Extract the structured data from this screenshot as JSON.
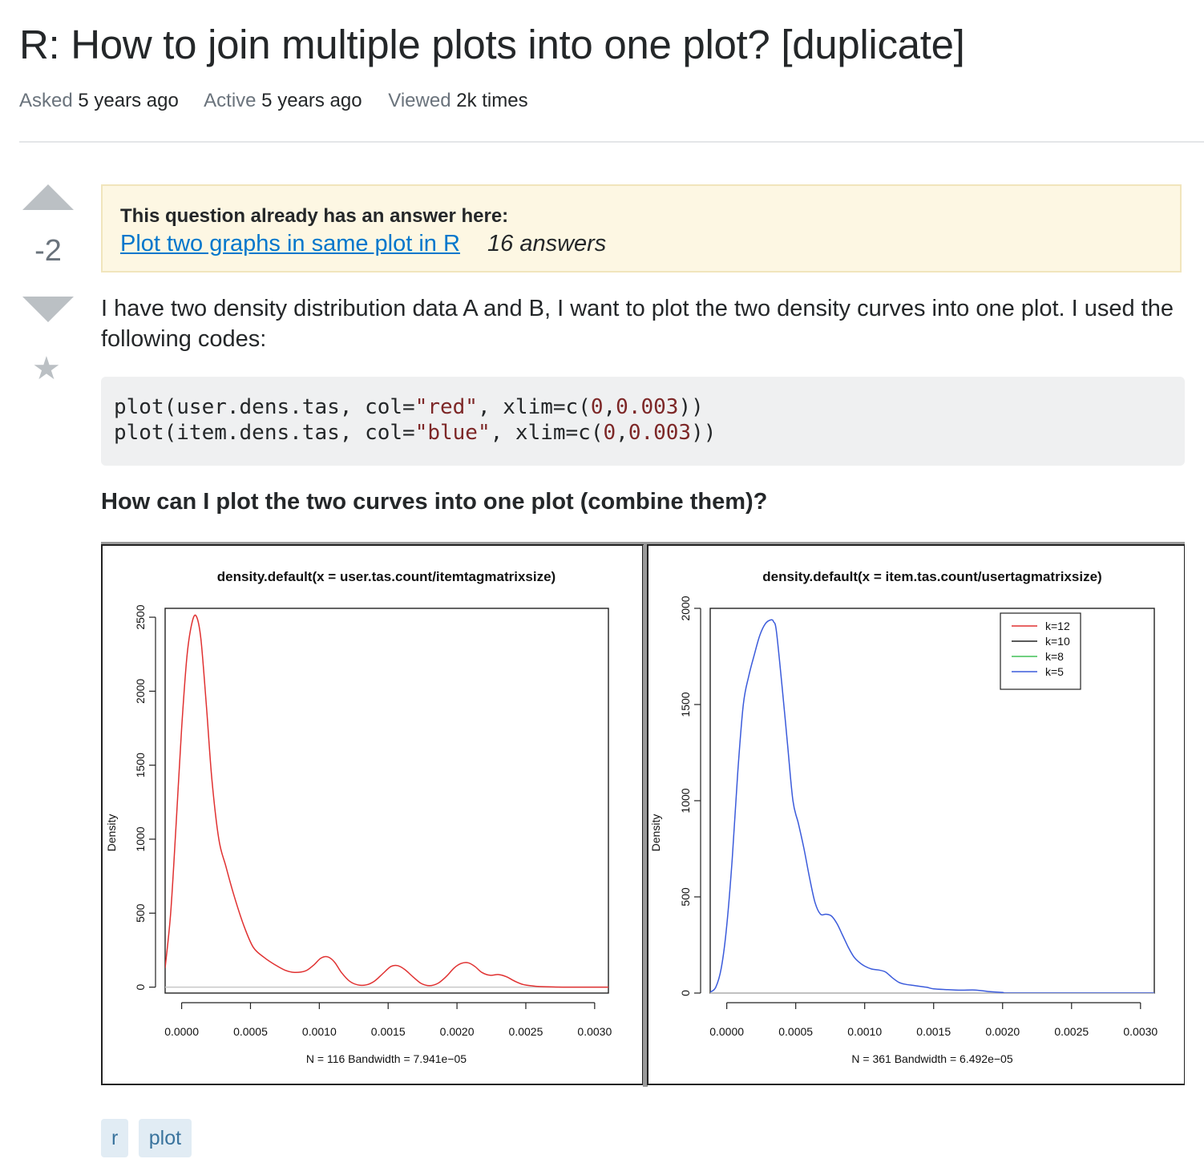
{
  "question": {
    "title": "R: How to join multiple plots into one plot? [duplicate]",
    "meta": [
      {
        "label": "Asked",
        "value": "5 years ago"
      },
      {
        "label": "Active",
        "value": "5 years ago"
      },
      {
        "label": "Viewed",
        "value": "2k times"
      }
    ],
    "vote_count": "-2",
    "duplicate_notice": {
      "heading": "This question already has an answer here:",
      "link_text": "Plot two graphs in same plot in R",
      "answers": "16 answers"
    },
    "body_text": "I have two density distribution data A and B, I want to plot the two density curves into one plot. I used the following codes:",
    "code_lines": [
      "plot(user.dens.tas, col=\"red\", xlim=c(0,0.003))",
      "plot(item.dens.tas, col=\"blue\", xlim=c(0,0.003))"
    ],
    "subheading": "How can I plot the two curves into one plot (combine them)?",
    "tags": [
      "r",
      "plot"
    ]
  },
  "chart_data": [
    {
      "type": "line",
      "title": "density.default(x = user.tas.count/itemtagmatrixsize)",
      "xlabel": "N = 116   Bandwidth = 7.941e−05",
      "ylabel": "Density",
      "xlim": [
        -0.00012,
        0.0031
      ],
      "ylim": [
        -40,
        2560
      ],
      "x_ticks": [
        0,
        0.0005,
        0.001,
        0.0015,
        0.002,
        0.0025,
        0.003
      ],
      "x_tick_labels": [
        "0.0000",
        "0.0005",
        "0.0010",
        "0.0015",
        "0.0020",
        "0.0025",
        "0.0030"
      ],
      "y_ticks": [
        0,
        500,
        1000,
        1500,
        2000,
        2500
      ],
      "y_tick_labels": [
        "0",
        "500",
        "1000",
        "1500",
        "2000",
        "2500"
      ],
      "grid": false,
      "color": "#e03131",
      "x": [
        -0.00012,
        -8e-05,
        -4e-05,
        0.0,
        4e-05,
        8e-05,
        0.00011,
        0.00014,
        0.00018,
        0.00022,
        0.00027,
        0.00032,
        0.00038,
        0.00045,
        0.00052,
        0.0006,
        0.00068,
        0.00075,
        0.00082,
        0.0009,
        0.00096,
        0.00101,
        0.00106,
        0.00111,
        0.00116,
        0.00122,
        0.00128,
        0.00134,
        0.0014,
        0.00146,
        0.00152,
        0.00157,
        0.00162,
        0.00168,
        0.00174,
        0.0018,
        0.00186,
        0.00192,
        0.00198,
        0.00203,
        0.00208,
        0.00213,
        0.00218,
        0.00224,
        0.0023,
        0.00236,
        0.00242,
        0.00248,
        0.00255,
        0.0026,
        0.0027,
        0.0028,
        0.0029,
        0.0031
      ],
      "y": [
        130,
        500,
        1100,
        1750,
        2250,
        2480,
        2500,
        2350,
        1900,
        1400,
        1000,
        820,
        620,
        420,
        270,
        200,
        150,
        115,
        100,
        110,
        150,
        195,
        205,
        170,
        100,
        40,
        15,
        15,
        40,
        90,
        140,
        145,
        120,
        70,
        25,
        10,
        25,
        70,
        130,
        160,
        165,
        140,
        100,
        80,
        85,
        70,
        40,
        18,
        8,
        4,
        1,
        0,
        0,
        0
      ]
    },
    {
      "type": "line",
      "title": "density.default(x = item.tas.count/usertagmatrixsize)",
      "xlabel": "N = 361   Bandwidth = 6.492e−05",
      "ylabel": "Density",
      "xlim": [
        -0.00012,
        0.0031
      ],
      "ylim": [
        0,
        2000
      ],
      "x_ticks": [
        0,
        0.0005,
        0.001,
        0.0015,
        0.002,
        0.0025,
        0.003
      ],
      "x_tick_labels": [
        "0.0000",
        "0.0005",
        "0.0010",
        "0.0015",
        "0.0020",
        "0.0025",
        "0.0030"
      ],
      "y_ticks": [
        0,
        500,
        1000,
        1500,
        2000
      ],
      "y_tick_labels": [
        "0",
        "500",
        "1000",
        "1500",
        "2000"
      ],
      "grid": false,
      "color": "#3b5bdb",
      "legend": {
        "position": "top-right",
        "entries": [
          {
            "name": "k=12",
            "color": "#e03131"
          },
          {
            "name": "k=10",
            "color": "#222222"
          },
          {
            "name": "k=8",
            "color": "#40c057"
          },
          {
            "name": "k=5",
            "color": "#3b5bdb"
          }
        ]
      },
      "x": [
        -0.00012,
        -8e-05,
        -4e-05,
        0.0,
        4e-05,
        8e-05,
        0.00012,
        0.00016,
        0.0002,
        0.00024,
        0.00028,
        0.00032,
        0.00034,
        0.00036,
        0.0004,
        0.00044,
        0.00048,
        0.00052,
        0.00056,
        0.0006,
        0.00064,
        0.00068,
        0.00072,
        0.00076,
        0.0008,
        0.00084,
        0.00088,
        0.00092,
        0.00096,
        0.001,
        0.00105,
        0.0011,
        0.00115,
        0.0012,
        0.00125,
        0.0013,
        0.00135,
        0.0014,
        0.00145,
        0.0015,
        0.0016,
        0.0017,
        0.0018,
        0.0019,
        0.002,
        0.0021,
        0.0031
      ],
      "y": [
        5,
        30,
        130,
        350,
        700,
        1150,
        1500,
        1650,
        1760,
        1860,
        1920,
        1940,
        1930,
        1880,
        1600,
        1300,
        1000,
        880,
        750,
        600,
        470,
        410,
        410,
        400,
        360,
        300,
        240,
        190,
        160,
        140,
        125,
        120,
        110,
        80,
        55,
        45,
        40,
        35,
        30,
        22,
        18,
        15,
        16,
        8,
        3,
        0,
        0
      ]
    }
  ]
}
